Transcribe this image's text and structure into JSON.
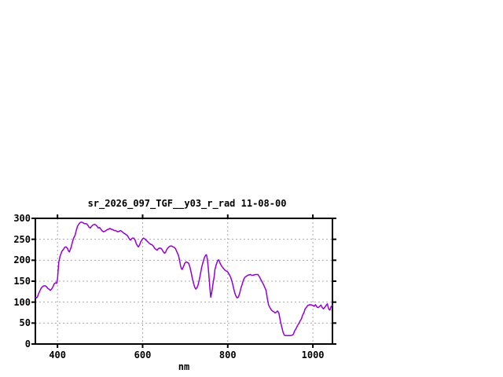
{
  "page": {
    "background": "#ffffff"
  },
  "chart": {
    "title": "sr_2026_097_TGF__y03_r_rad 11-08-00",
    "xlabel": "nm",
    "line_color": "#9400d3",
    "grid_color": "#a8a8a8",
    "axis_color": "#000000",
    "text_color": "#000000"
  },
  "chart_data": {
    "type": "line",
    "title": "sr_2026_097_TGF__y03_r_rad 11-08-00",
    "xlabel": "nm",
    "ylabel": "",
    "xlim": [
      348,
      1046
    ],
    "ylim": [
      0,
      300
    ],
    "x_ticks": [
      400,
      600,
      800,
      1000
    ],
    "y_ticks": [
      0,
      50,
      100,
      150,
      200,
      250,
      300
    ],
    "grid": true,
    "legend": false,
    "series": [
      {
        "name": "sr_2026_097_TGF__y03_r_rad",
        "color": "#9400d3",
        "x": [
          348,
          351,
          353,
          356,
          359,
          362,
          365,
          368,
          371,
          374,
          377,
          380,
          383,
          386,
          389,
          392,
          395,
          398,
          400,
          403,
          406,
          410,
          414,
          417,
          420,
          423,
          426,
          428,
          432,
          435,
          438,
          441,
          444,
          447,
          450,
          453,
          456,
          459,
          462,
          465,
          468,
          471,
          474,
          477,
          480,
          483,
          487,
          490,
          493,
          496,
          499,
          502,
          505,
          508,
          511,
          514,
          517,
          520,
          523,
          526,
          530,
          533,
          536,
          539,
          542,
          545,
          548,
          551,
          554,
          557,
          560,
          564,
          567,
          570,
          572,
          574,
          576,
          579,
          582,
          585,
          588,
          590,
          593,
          595,
          598,
          600,
          602,
          605,
          607,
          610,
          613,
          616,
          619,
          622,
          625,
          628,
          631,
          634,
          637,
          640,
          644,
          647,
          650,
          652,
          654,
          656,
          659,
          662,
          665,
          668,
          671,
          674,
          677,
          680,
          684,
          687,
          689,
          691,
          693,
          696,
          699,
          702,
          705,
          708,
          711,
          714,
          717,
          720,
          723,
          725,
          728,
          730,
          733,
          736,
          739,
          742,
          745,
          748,
          750,
          752,
          754,
          756,
          758,
          760,
          762,
          764,
          766,
          768,
          770,
          773,
          776,
          778,
          780,
          782,
          785,
          788,
          791,
          794,
          797,
          800,
          804,
          807,
          810,
          813,
          816,
          819,
          822,
          825,
          828,
          831,
          834,
          837,
          840,
          844,
          847,
          850,
          853,
          856,
          859,
          862,
          865,
          868,
          871,
          874,
          877,
          881,
          884,
          887,
          890,
          893,
          896,
          899,
          902,
          905,
          908,
          911,
          914,
          917,
          920,
          924,
          927,
          930,
          933,
          936,
          940,
          944,
          948,
          951,
          954,
          957,
          961,
          964,
          967,
          970,
          973,
          976,
          979,
          982,
          985,
          988,
          991,
          994,
          997,
          1000,
          1003,
          1006,
          1010,
          1013,
          1016,
          1019,
          1022,
          1025,
          1028,
          1031,
          1034,
          1037,
          1040,
          1043,
          1046
        ],
        "y": [
          112,
          110,
          113,
          121,
          128,
          134,
          137,
          139,
          139,
          137,
          133,
          131,
          128,
          131,
          136,
          143,
          146,
          145,
          156,
          196,
          209,
          221,
          226,
          231,
          232,
          229,
          222,
          220,
          231,
          243,
          253,
          259,
          271,
          281,
          286,
          290,
          291,
          290,
          288,
          287,
          287,
          284,
          279,
          277,
          281,
          284,
          286,
          284,
          281,
          277,
          278,
          274,
          270,
          268,
          269,
          271,
          273,
          274,
          276,
          274,
          273,
          271,
          271,
          269,
          268,
          269,
          271,
          269,
          266,
          264,
          262,
          259,
          254,
          249,
          248,
          251,
          253,
          253,
          249,
          240,
          234,
          232,
          237,
          243,
          248,
          251,
          253,
          251,
          249,
          246,
          243,
          240,
          238,
          237,
          234,
          229,
          226,
          224,
          228,
          229,
          228,
          223,
          218,
          217,
          219,
          224,
          229,
          232,
          234,
          234,
          232,
          231,
          228,
          221,
          212,
          199,
          187,
          180,
          178,
          185,
          193,
          196,
          195,
          193,
          184,
          171,
          156,
          143,
          134,
          131,
          135,
          140,
          153,
          168,
          184,
          196,
          206,
          212,
          213,
          203,
          184,
          159,
          135,
          112,
          121,
          134,
          149,
          159,
          178,
          190,
          198,
          201,
          199,
          193,
          187,
          183,
          179,
          176,
          174,
          172,
          165,
          159,
          149,
          137,
          124,
          115,
          110,
          112,
          121,
          134,
          143,
          153,
          159,
          162,
          164,
          165,
          166,
          164,
          164,
          165,
          166,
          166,
          166,
          161,
          155,
          148,
          142,
          135,
          128,
          109,
          93,
          87,
          82,
          79,
          77,
          74,
          76,
          79,
          74,
          53,
          40,
          28,
          21,
          20,
          20,
          20,
          20,
          21,
          23,
          31,
          38,
          44,
          49,
          55,
          60,
          69,
          75,
          84,
          88,
          92,
          93,
          94,
          93,
          92,
          90,
          94,
          88,
          87,
          90,
          93,
          87,
          84,
          88,
          92,
          96,
          84,
          81,
          90,
          92
        ]
      }
    ]
  }
}
